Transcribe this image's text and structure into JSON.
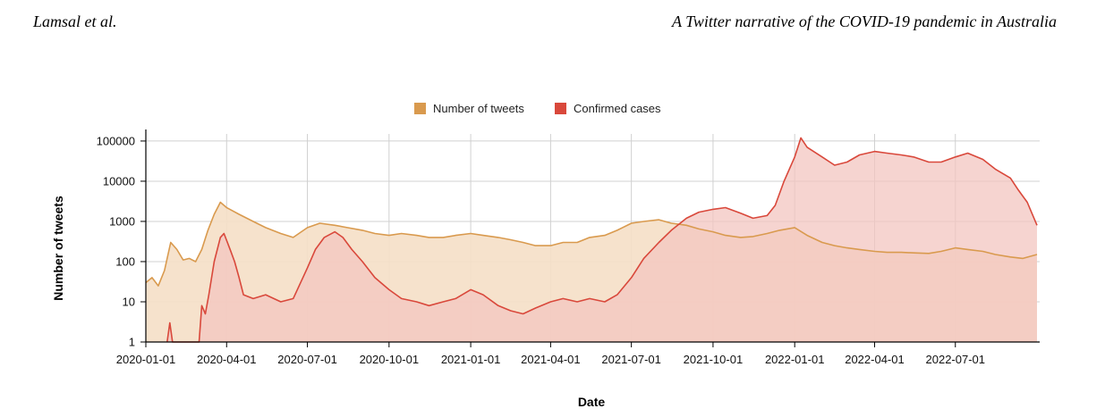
{
  "header": {
    "authors": "Lamsal et al.",
    "title": "A Twitter narrative of the COVID-19 pandemic in Australia"
  },
  "chart_data": {
    "type": "area",
    "xlabel": "Date",
    "ylabel": "Number of tweets",
    "yscale": "log",
    "ylim": [
      1,
      150000
    ],
    "xlim": [
      "2020-01-01",
      "2022-10-04"
    ],
    "x_ticks": [
      "2020-01-01",
      "2020-04-01",
      "2020-07-01",
      "2020-10-01",
      "2021-01-01",
      "2021-04-01",
      "2021-07-01",
      "2021-10-01",
      "2022-01-01",
      "2022-04-01",
      "2022-07-01"
    ],
    "y_ticks": [
      1,
      10,
      100,
      1000,
      10000,
      100000
    ],
    "y_tick_labels": [
      "1",
      "10",
      "100",
      "1000",
      "10000",
      "100000"
    ],
    "grid": true,
    "legend_position": "top-center",
    "series": [
      {
        "name": "Number of tweets",
        "color": "#d99a4e",
        "fill": "#f5dfc6",
        "points": [
          [
            "2020-01-01",
            30
          ],
          [
            "2020-01-08",
            40
          ],
          [
            "2020-01-15",
            25
          ],
          [
            "2020-01-22",
            60
          ],
          [
            "2020-01-29",
            300
          ],
          [
            "2020-02-05",
            200
          ],
          [
            "2020-02-12",
            110
          ],
          [
            "2020-02-19",
            120
          ],
          [
            "2020-02-26",
            100
          ],
          [
            "2020-03-04",
            200
          ],
          [
            "2020-03-11",
            600
          ],
          [
            "2020-03-18",
            1500
          ],
          [
            "2020-03-25",
            3000
          ],
          [
            "2020-04-01",
            2200
          ],
          [
            "2020-04-15",
            1500
          ],
          [
            "2020-05-01",
            1000
          ],
          [
            "2020-05-15",
            700
          ],
          [
            "2020-06-01",
            500
          ],
          [
            "2020-06-15",
            400
          ],
          [
            "2020-07-01",
            700
          ],
          [
            "2020-07-15",
            900
          ],
          [
            "2020-08-01",
            800
          ],
          [
            "2020-08-15",
            700
          ],
          [
            "2020-09-01",
            600
          ],
          [
            "2020-09-15",
            500
          ],
          [
            "2020-10-01",
            450
          ],
          [
            "2020-10-15",
            500
          ],
          [
            "2020-11-01",
            450
          ],
          [
            "2020-11-15",
            400
          ],
          [
            "2020-12-01",
            400
          ],
          [
            "2020-12-15",
            450
          ],
          [
            "2021-01-01",
            500
          ],
          [
            "2021-01-15",
            450
          ],
          [
            "2021-02-01",
            400
          ],
          [
            "2021-02-15",
            350
          ],
          [
            "2021-03-01",
            300
          ],
          [
            "2021-03-15",
            250
          ],
          [
            "2021-04-01",
            250
          ],
          [
            "2021-04-15",
            300
          ],
          [
            "2021-05-01",
            300
          ],
          [
            "2021-05-15",
            400
          ],
          [
            "2021-06-01",
            450
          ],
          [
            "2021-06-15",
            600
          ],
          [
            "2021-07-01",
            900
          ],
          [
            "2021-07-15",
            1000
          ],
          [
            "2021-08-01",
            1100
          ],
          [
            "2021-08-15",
            900
          ],
          [
            "2021-09-01",
            800
          ],
          [
            "2021-09-15",
            650
          ],
          [
            "2021-10-01",
            550
          ],
          [
            "2021-10-15",
            450
          ],
          [
            "2021-11-01",
            400
          ],
          [
            "2021-11-15",
            420
          ],
          [
            "2021-12-01",
            500
          ],
          [
            "2021-12-15",
            600
          ],
          [
            "2022-01-01",
            700
          ],
          [
            "2022-01-15",
            450
          ],
          [
            "2022-02-01",
            300
          ],
          [
            "2022-02-15",
            250
          ],
          [
            "2022-03-01",
            220
          ],
          [
            "2022-03-15",
            200
          ],
          [
            "2022-04-01",
            180
          ],
          [
            "2022-04-15",
            170
          ],
          [
            "2022-05-01",
            170
          ],
          [
            "2022-05-15",
            165
          ],
          [
            "2022-06-01",
            160
          ],
          [
            "2022-06-15",
            180
          ],
          [
            "2022-07-01",
            220
          ],
          [
            "2022-07-15",
            200
          ],
          [
            "2022-08-01",
            180
          ],
          [
            "2022-08-15",
            150
          ],
          [
            "2022-09-01",
            130
          ],
          [
            "2022-09-15",
            120
          ],
          [
            "2022-10-01",
            150
          ]
        ]
      },
      {
        "name": "Confirmed cases",
        "color": "#d9483b",
        "fill": "#f3c6c0",
        "points": [
          [
            "2020-01-25",
            1
          ],
          [
            "2020-01-28",
            3
          ],
          [
            "2020-01-31",
            1
          ],
          [
            "2020-02-15",
            1
          ],
          [
            "2020-03-01",
            1
          ],
          [
            "2020-03-04",
            8
          ],
          [
            "2020-03-08",
            5
          ],
          [
            "2020-03-12",
            15
          ],
          [
            "2020-03-18",
            100
          ],
          [
            "2020-03-25",
            400
          ],
          [
            "2020-03-29",
            500
          ],
          [
            "2020-04-05",
            200
          ],
          [
            "2020-04-10",
            100
          ],
          [
            "2020-04-15",
            40
          ],
          [
            "2020-04-20",
            15
          ],
          [
            "2020-05-01",
            12
          ],
          [
            "2020-05-15",
            15
          ],
          [
            "2020-06-01",
            10
          ],
          [
            "2020-06-15",
            12
          ],
          [
            "2020-07-01",
            70
          ],
          [
            "2020-07-10",
            200
          ],
          [
            "2020-07-20",
            400
          ],
          [
            "2020-08-01",
            550
          ],
          [
            "2020-08-10",
            400
          ],
          [
            "2020-08-20",
            200
          ],
          [
            "2020-09-01",
            100
          ],
          [
            "2020-09-15",
            40
          ],
          [
            "2020-10-01",
            20
          ],
          [
            "2020-10-15",
            12
          ],
          [
            "2020-11-01",
            10
          ],
          [
            "2020-11-15",
            8
          ],
          [
            "2020-12-01",
            10
          ],
          [
            "2020-12-15",
            12
          ],
          [
            "2021-01-01",
            20
          ],
          [
            "2021-01-15",
            15
          ],
          [
            "2021-02-01",
            8
          ],
          [
            "2021-02-15",
            6
          ],
          [
            "2021-03-01",
            5
          ],
          [
            "2021-03-15",
            7
          ],
          [
            "2021-04-01",
            10
          ],
          [
            "2021-04-15",
            12
          ],
          [
            "2021-05-01",
            10
          ],
          [
            "2021-05-15",
            12
          ],
          [
            "2021-06-01",
            10
          ],
          [
            "2021-06-15",
            15
          ],
          [
            "2021-07-01",
            40
          ],
          [
            "2021-07-15",
            120
          ],
          [
            "2021-08-01",
            300
          ],
          [
            "2021-08-15",
            600
          ],
          [
            "2021-09-01",
            1200
          ],
          [
            "2021-09-15",
            1700
          ],
          [
            "2021-10-01",
            2000
          ],
          [
            "2021-10-15",
            2200
          ],
          [
            "2021-11-01",
            1600
          ],
          [
            "2021-11-15",
            1200
          ],
          [
            "2021-12-01",
            1400
          ],
          [
            "2021-12-10",
            2500
          ],
          [
            "2021-12-20",
            10000
          ],
          [
            "2022-01-01",
            40000
          ],
          [
            "2022-01-08",
            120000
          ],
          [
            "2022-01-15",
            70000
          ],
          [
            "2022-02-01",
            40000
          ],
          [
            "2022-02-15",
            25000
          ],
          [
            "2022-03-01",
            30000
          ],
          [
            "2022-03-15",
            45000
          ],
          [
            "2022-04-01",
            55000
          ],
          [
            "2022-04-15",
            50000
          ],
          [
            "2022-05-01",
            45000
          ],
          [
            "2022-05-15",
            40000
          ],
          [
            "2022-06-01",
            30000
          ],
          [
            "2022-06-15",
            30000
          ],
          [
            "2022-07-01",
            40000
          ],
          [
            "2022-07-15",
            50000
          ],
          [
            "2022-08-01",
            35000
          ],
          [
            "2022-08-15",
            20000
          ],
          [
            "2022-09-01",
            12000
          ],
          [
            "2022-09-10",
            6000
          ],
          [
            "2022-09-20",
            3000
          ],
          [
            "2022-10-01",
            800
          ]
        ]
      }
    ]
  }
}
